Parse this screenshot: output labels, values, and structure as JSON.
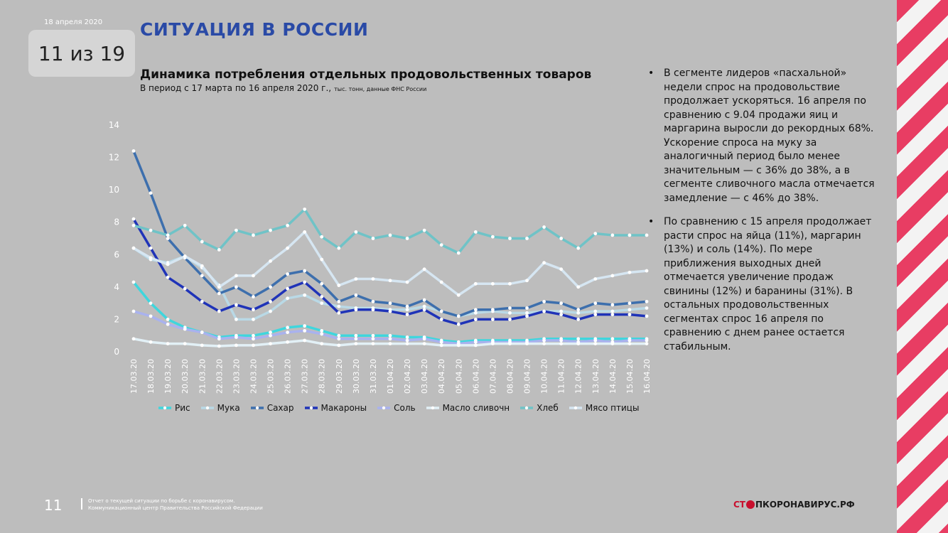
{
  "slide": {
    "date": "18 апреля 2020",
    "counter": "11 из 19",
    "heading": "СИТУАЦИЯ В РОССИИ",
    "chart_title": "Динамика потребления отдельных продовольственных товаров",
    "chart_subtitle": "В период с 17 марта по 16 апреля 2020 г.,",
    "chart_subtitle_small": "тыс. тонн, данные ФНС России",
    "page_number": "11",
    "footer_line1": "Отчет о текущей ситуации по борьбе с коронавирусом.",
    "footer_line2": "Коммуникационный центр Правительства Российской Федерации",
    "logo_left": "СТ",
    "logo_right": "ПКОРОНАВИРУС.РФ"
  },
  "bullets": [
    "В сегменте лидеров «пасхальной» недели спрос на продовольствие продолжает ускоряться. 16 апреля по сравнению с 9.04 продажи яиц и маргарина выросли до рекордных 68%. Ускорение спроса на муку за аналогичный период было менее значительным — с 36% до 38%, а в сегменте сливочного масла отмечается замедление — с 46% до 38%.",
    "По сравнению с 15 апреля продолжает расти спрос на яйца (11%), маргарин (13%) и соль (14%). По мере приближения выходных дней отмечается увеличение продаж свинины (12%) и баранины (31%). В остальных продовольственных сегментах спрос 16 апреля по сравнению с днем ранее остается стабильным."
  ],
  "chart_data": {
    "type": "line",
    "title": "Динамика потребления отдельных продовольственных товаров",
    "ylim": [
      0,
      14
    ],
    "yticks": [
      0,
      2,
      4,
      6,
      8,
      10,
      12,
      14
    ],
    "grid": false,
    "legend_position": "bottom",
    "categories": [
      "17.03.20",
      "18.03.20",
      "19.03.20",
      "20.03.20",
      "21.03.20",
      "22.03.20",
      "23.03.20",
      "24.03.20",
      "25.03.20",
      "26.03.20",
      "27.03.20",
      "28.03.20",
      "29.03.20",
      "30.03.20",
      "31.03.20",
      "01.04.20",
      "02.04.20",
      "03.04.20",
      "04.04.20",
      "05.04.20",
      "06.04.20",
      "07.04.20",
      "08.04.20",
      "09.04.20",
      "10.04.20",
      "11.04.20",
      "12.04.20",
      "13.04.20",
      "14.04.20",
      "15.04.20",
      "16.04.20"
    ],
    "series": [
      {
        "name": "Рис",
        "color": "#3fd6dd",
        "values": [
          4.3,
          3.0,
          2.0,
          1.5,
          1.2,
          0.9,
          1.0,
          1.0,
          1.2,
          1.5,
          1.6,
          1.3,
          1.0,
          1.0,
          1.0,
          1.0,
          0.9,
          0.9,
          0.7,
          0.6,
          0.7,
          0.7,
          0.7,
          0.7,
          0.8,
          0.8,
          0.8,
          0.8,
          0.8,
          0.8,
          0.8
        ]
      },
      {
        "name": "Мука",
        "color": "#b9d9e6",
        "values": [
          6.4,
          5.7,
          5.5,
          5.9,
          5.2,
          4.1,
          2.0,
          2.0,
          2.5,
          3.3,
          3.5,
          3.0,
          2.8,
          2.7,
          2.7,
          2.6,
          2.6,
          2.8,
          2.5,
          2.2,
          2.4,
          2.5,
          2.4,
          2.4,
          2.5,
          2.5,
          2.4,
          2.5,
          2.5,
          2.6,
          2.7
        ]
      },
      {
        "name": "Сахар",
        "color": "#3d6fad",
        "values": [
          12.4,
          9.8,
          7.0,
          5.8,
          4.7,
          3.6,
          4.0,
          3.4,
          4.0,
          4.8,
          5.0,
          4.2,
          3.1,
          3.5,
          3.1,
          3.0,
          2.8,
          3.2,
          2.5,
          2.2,
          2.6,
          2.6,
          2.7,
          2.7,
          3.1,
          3.0,
          2.6,
          3.0,
          2.9,
          3.0,
          3.1
        ]
      },
      {
        "name": "Макароны",
        "color": "#1f33b8",
        "values": [
          8.2,
          6.4,
          4.6,
          3.9,
          3.1,
          2.5,
          2.9,
          2.6,
          3.1,
          3.9,
          4.3,
          3.4,
          2.4,
          2.6,
          2.6,
          2.5,
          2.3,
          2.6,
          2.0,
          1.7,
          2.0,
          2.0,
          2.0,
          2.2,
          2.5,
          2.3,
          2.0,
          2.3,
          2.3,
          2.3,
          2.2
        ]
      },
      {
        "name": "Соль",
        "color": "#a9b2ee",
        "values": [
          2.5,
          2.2,
          1.7,
          1.4,
          1.2,
          0.8,
          0.9,
          0.8,
          1.0,
          1.2,
          1.3,
          1.1,
          0.8,
          0.8,
          0.8,
          0.8,
          0.7,
          0.8,
          0.6,
          0.5,
          0.6,
          0.6,
          0.6,
          0.6,
          0.7,
          0.7,
          0.6,
          0.7,
          0.6,
          0.7,
          0.7
        ]
      },
      {
        "name": "Масло сливочн",
        "color": "#e2f0f6",
        "values": [
          0.8,
          0.6,
          0.5,
          0.5,
          0.4,
          0.35,
          0.4,
          0.4,
          0.5,
          0.6,
          0.7,
          0.5,
          0.4,
          0.5,
          0.5,
          0.5,
          0.5,
          0.5,
          0.4,
          0.4,
          0.4,
          0.5,
          0.5,
          0.5,
          0.5,
          0.5,
          0.5,
          0.5,
          0.5,
          0.5,
          0.5
        ]
      },
      {
        "name": "Хлеб",
        "color": "#6fc3c7",
        "values": [
          7.8,
          7.5,
          7.2,
          7.8,
          6.8,
          6.3,
          7.5,
          7.2,
          7.5,
          7.8,
          8.8,
          7.1,
          6.4,
          7.4,
          7.0,
          7.2,
          7.0,
          7.5,
          6.6,
          6.1,
          7.4,
          7.1,
          7.0,
          7.0,
          7.7,
          7.0,
          6.4,
          7.3,
          7.2,
          7.2,
          7.2
        ]
      },
      {
        "name": "Мясо птицы",
        "color": "#d6e6f2",
        "values": [
          6.4,
          5.8,
          5.4,
          5.9,
          5.3,
          4.0,
          4.7,
          4.7,
          5.6,
          6.4,
          7.4,
          5.7,
          4.1,
          4.5,
          4.5,
          4.4,
          4.3,
          5.1,
          4.3,
          3.5,
          4.2,
          4.2,
          4.2,
          4.4,
          5.5,
          5.1,
          4.0,
          4.5,
          4.7,
          4.9,
          5.0
        ]
      }
    ]
  }
}
